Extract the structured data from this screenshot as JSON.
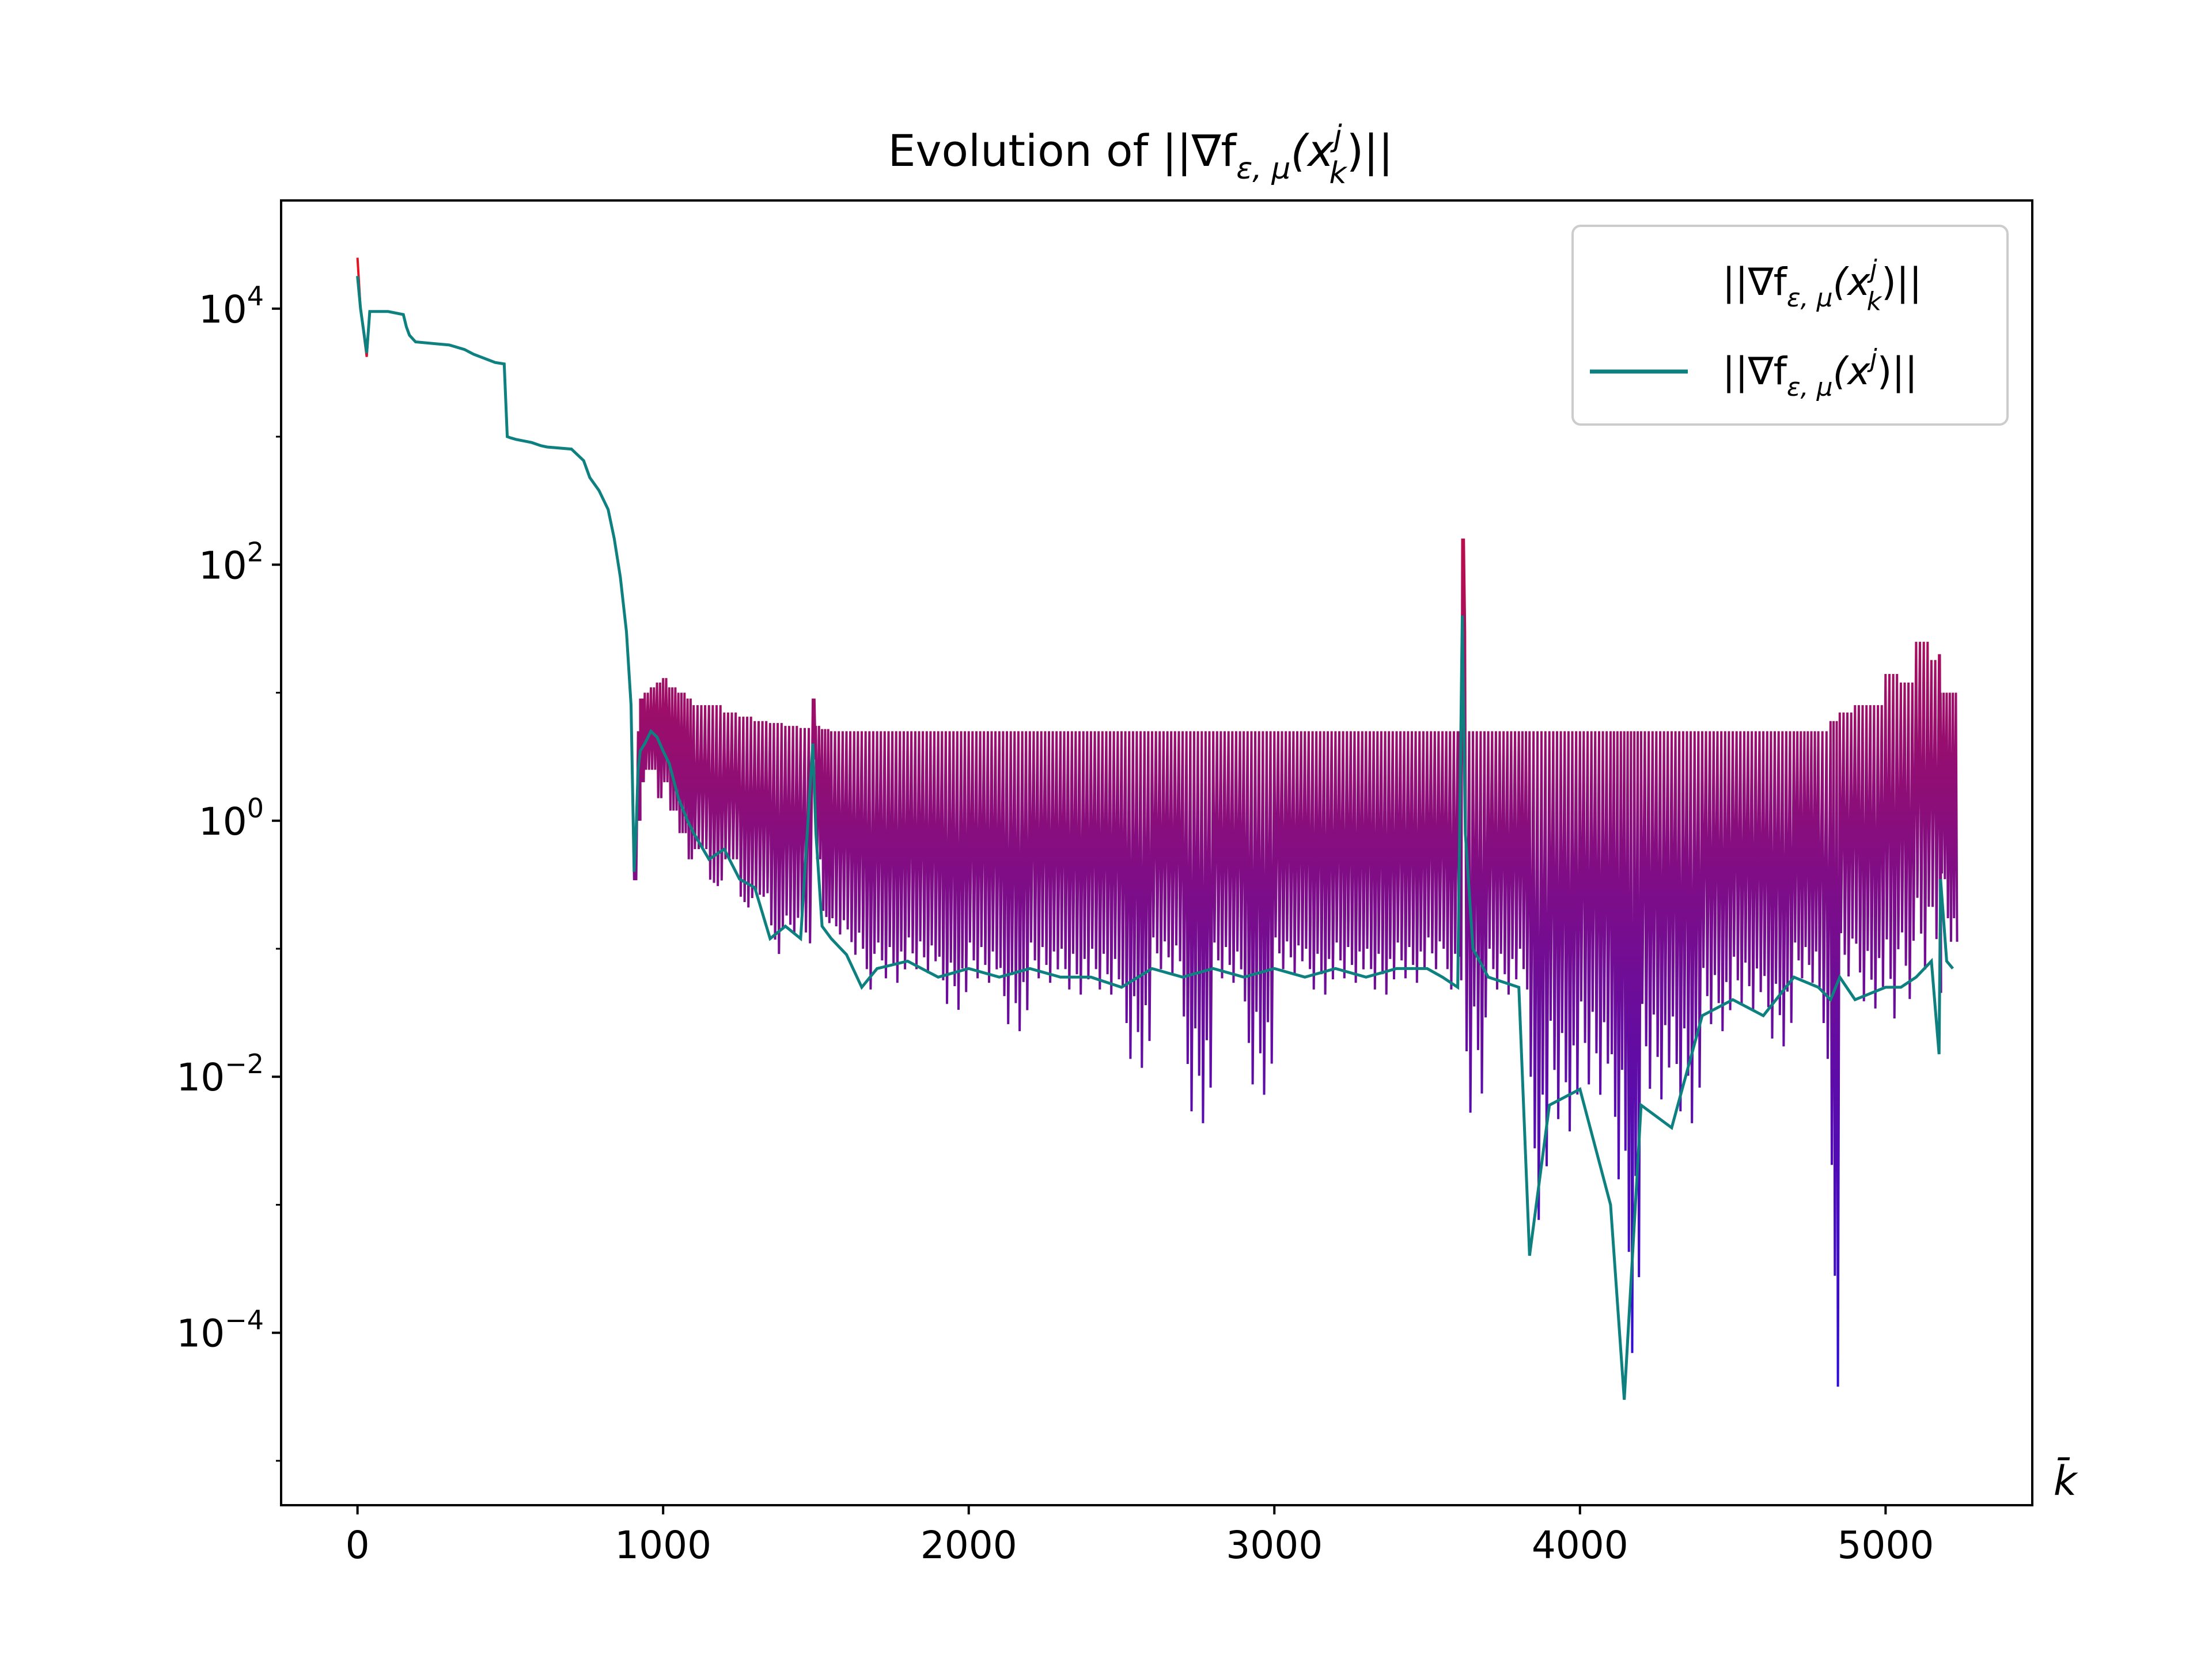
{
  "chart_data": {
    "type": "line",
    "title": "Evolution of ||∇f",
    "title_sub": "ε, μ",
    "title_tail_1": "(x",
    "title_sup": "j",
    "title_subk": "k",
    "title_tail_2": ")||",
    "xlabel": "k̄",
    "ylabel": "",
    "xlim": [
      -250,
      5480
    ],
    "ylim": [
      4.5e-06,
      70000
    ],
    "yscale": "log",
    "grid": false,
    "legend_placement": "top-right",
    "x_ticks": [
      {
        "value": 0,
        "label": "0"
      },
      {
        "value": 1000,
        "label": "1000"
      },
      {
        "value": 2000,
        "label": "2000"
      },
      {
        "value": 3000,
        "label": "3000"
      },
      {
        "value": 4000,
        "label": "4000"
      },
      {
        "value": 5000,
        "label": "5000"
      }
    ],
    "y_ticks": [
      {
        "value": 10000,
        "base": "10",
        "exp": "4"
      },
      {
        "value": 100,
        "base": "10",
        "exp": "2"
      },
      {
        "value": 1,
        "base": "10",
        "exp": "0"
      },
      {
        "value": 0.01,
        "base": "10",
        "exp": "−2"
      },
      {
        "value": 0.0001,
        "base": "10",
        "exp": "−4"
      }
    ],
    "series": [
      {
        "name": "||∇f_ε,μ(x_k^j)||",
        "legend": {
          "pre": "||∇f",
          "sub": "ε, μ",
          "mid": "(x",
          "sup": "j",
          "subk": "k",
          "post": ")||"
        },
        "color_start": "#e8101c",
        "color_end": "#2a0bdc",
        "x": [
          0,
          10,
          30,
          40,
          100,
          150,
          160,
          170,
          190,
          300,
          350,
          380,
          450,
          480,
          490,
          500,
          520,
          570,
          600,
          620,
          700,
          740,
          760,
          790,
          820,
          840,
          860,
          880,
          895,
          905,
          912,
          918,
          925,
          940,
          960,
          980,
          1000,
          1020,
          1050,
          1080,
          1100,
          1150,
          1200,
          1250,
          1300,
          1350,
          1400,
          1450,
          1490,
          1500,
          1520,
          1550,
          1600,
          1650,
          1700,
          1800,
          1900,
          2000,
          2100,
          2200,
          2300,
          2400,
          2500,
          2600,
          2700,
          2800,
          2900,
          3000,
          3100,
          3200,
          3300,
          3400,
          3500,
          3550,
          3600,
          3615,
          3625,
          3650,
          3700,
          3800,
          3835,
          3900,
          4000,
          4100,
          4145,
          4200,
          4300,
          4400,
          4500,
          4600,
          4700,
          4780,
          4820,
          4850,
          4900,
          5000,
          5050,
          5100,
          5150,
          5175,
          5180,
          5200,
          5220
        ],
        "y": [
          25000,
          10000,
          4200,
          9500,
          9500,
          9000,
          7200,
          6200,
          5500,
          5200,
          4800,
          4400,
          3800,
          3700,
          1000,
          980,
          950,
          900,
          850,
          830,
          800,
          650,
          480,
          380,
          270,
          160,
          80,
          30,
          8,
          0.35,
          0.35,
          5,
          9,
          10,
          11,
          12,
          13,
          11,
          10,
          9,
          8,
          8,
          7,
          6.5,
          6,
          5.8,
          5.5,
          5.3,
          9,
          5.5,
          5.2,
          5,
          5,
          5,
          5,
          5,
          5,
          5,
          5,
          5,
          5,
          5,
          5,
          5,
          5,
          5,
          5,
          5,
          5,
          5,
          5,
          5,
          5,
          5,
          5,
          160,
          5,
          5,
          5,
          5,
          5,
          5,
          5,
          5,
          5,
          5,
          5,
          5,
          5,
          5,
          5,
          5,
          6,
          7,
          8,
          14,
          12,
          25,
          18,
          20,
          10,
          10,
          10
        ],
        "y_low": [
          25000,
          10000,
          4200,
          9500,
          9500,
          9000,
          7200,
          6200,
          5500,
          5200,
          4800,
          4400,
          3800,
          3700,
          1000,
          980,
          950,
          900,
          850,
          830,
          800,
          650,
          480,
          380,
          270,
          160,
          80,
          30,
          8,
          0.35,
          0.35,
          1,
          2,
          2.5,
          2.5,
          1.5,
          2,
          1.2,
          0.8,
          0.5,
          0.6,
          0.3,
          0.5,
          0.2,
          0.25,
          0.08,
          0.12,
          0.1,
          3,
          0.5,
          0.15,
          0.12,
          0.08,
          0.04,
          0.05,
          0.06,
          0.03,
          0.05,
          0.02,
          0.05,
          0.04,
          0.04,
          0.01,
          0.06,
          0.0035,
          0.05,
          0.006,
          0.06,
          0.04,
          0.05,
          0.04,
          0.05,
          0.06,
          0.04,
          0.03,
          30,
          0.001,
          0.005,
          0.04,
          0.04,
          0.0004,
          0.003,
          0.006,
          0.0009,
          2.8e-05,
          0.0055,
          0.0035,
          0.02,
          0.03,
          0.015,
          0.05,
          0.01,
          1.4e-05,
          0.05,
          0.03,
          0.02,
          0.03,
          0.05,
          0.05,
          0.012,
          0.3,
          0.06,
          0.06
        ]
      },
      {
        "name": "||∇f_ε,μ(x^j)||",
        "legend": {
          "pre": "||∇f",
          "sub": "ε, μ",
          "mid": "(x",
          "sup": "j",
          "post": ")||"
        },
        "color": "#0e8080",
        "x": [
          0,
          10,
          30,
          40,
          100,
          150,
          160,
          170,
          190,
          300,
          350,
          380,
          450,
          480,
          490,
          500,
          520,
          570,
          600,
          620,
          700,
          740,
          760,
          790,
          820,
          840,
          860,
          880,
          895,
          905,
          912,
          918,
          925,
          940,
          960,
          980,
          1000,
          1020,
          1050,
          1080,
          1100,
          1150,
          1200,
          1250,
          1300,
          1350,
          1400,
          1450,
          1490,
          1500,
          1520,
          1550,
          1600,
          1650,
          1700,
          1800,
          1900,
          2000,
          2100,
          2200,
          2300,
          2400,
          2500,
          2600,
          2700,
          2800,
          2900,
          3000,
          3100,
          3200,
          3300,
          3400,
          3500,
          3550,
          3600,
          3615,
          3625,
          3650,
          3700,
          3800,
          3835,
          3900,
          4000,
          4100,
          4145,
          4200,
          4300,
          4400,
          4500,
          4600,
          4700,
          4780,
          4820,
          4850,
          4900,
          5000,
          5050,
          5100,
          5150,
          5175,
          5180,
          5200,
          5220
        ],
        "y": [
          18000,
          10000,
          4500,
          9500,
          9500,
          9000,
          7200,
          6200,
          5500,
          5200,
          4800,
          4400,
          3800,
          3700,
          1000,
          980,
          950,
          900,
          850,
          830,
          800,
          650,
          480,
          380,
          270,
          160,
          80,
          30,
          8,
          0.4,
          0.9,
          2.5,
          3.5,
          4,
          5,
          4.5,
          3.5,
          2.8,
          1.5,
          1,
          0.8,
          0.5,
          0.6,
          0.35,
          0.3,
          0.12,
          0.15,
          0.12,
          4,
          0.8,
          0.15,
          0.12,
          0.09,
          0.05,
          0.07,
          0.08,
          0.06,
          0.07,
          0.06,
          0.07,
          0.06,
          0.06,
          0.05,
          0.07,
          0.06,
          0.07,
          0.06,
          0.07,
          0.06,
          0.07,
          0.06,
          0.07,
          0.07,
          0.06,
          0.05,
          40,
          0.8,
          0.1,
          0.06,
          0.05,
          0.0004,
          0.006,
          0.008,
          0.001,
          3e-05,
          0.006,
          0.004,
          0.03,
          0.04,
          0.03,
          0.06,
          0.05,
          0.04,
          0.06,
          0.04,
          0.05,
          0.05,
          0.06,
          0.08,
          0.015,
          0.35,
          0.08,
          0.07
        ]
      }
    ]
  }
}
